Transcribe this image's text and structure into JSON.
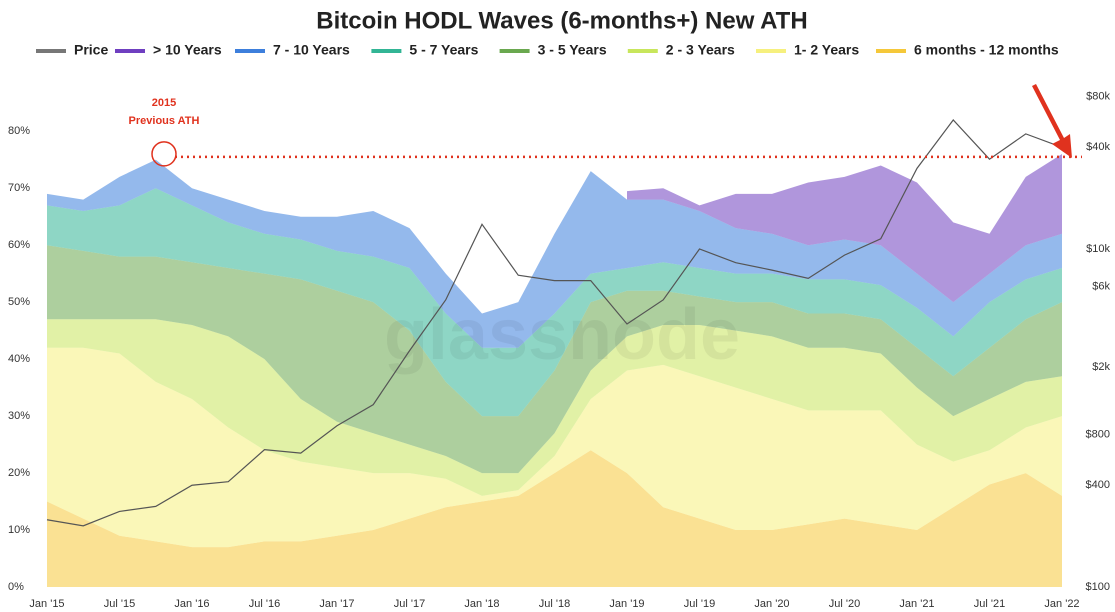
{
  "chart_data": {
    "type": "stacked_area",
    "title": "Bitcoin HODL Waves (6-months+) New ATH",
    "annotation": "2015",
    "annotation_2": "Previous ATH",
    "watermark": "glassnode",
    "ath_line": 75.5,
    "categories": [
      "Jan '15",
      null,
      "Jul '15",
      null,
      "Jan '16",
      null,
      "Jul '16",
      null,
      "Jan '17",
      null,
      "Jul '17",
      null,
      "Jan '18",
      null,
      "Jul '18",
      null,
      "Jan '19",
      null,
      "Jul '19",
      null,
      "Jan '20",
      null,
      "Jul '20",
      null,
      "Jan '21",
      null,
      "Jul '21",
      null,
      "Jan '22"
    ],
    "series": [
      {
        "name": "Price",
        "type": "line",
        "axis": "y2",
        "color": "#777777",
        "values": [
          250,
          230,
          280,
          300,
          400,
          420,
          650,
          620,
          900,
          1200,
          2500,
          5000,
          14000,
          7000,
          6500,
          6500,
          3600,
          5000,
          10000,
          8300,
          7500,
          6700,
          9200,
          11500,
          30000,
          58000,
          34000,
          48000,
          40000
        ]
      },
      {
        "name": "> 10 Years",
        "color": "#6f3fc0",
        "values": [
          null,
          null,
          null,
          null,
          null,
          null,
          null,
          null,
          null,
          null,
          null,
          null,
          null,
          null,
          null,
          null,
          1.5,
          2,
          1,
          6,
          7,
          11,
          11,
          14,
          16,
          14,
          7,
          12,
          14
        ]
      },
      {
        "name": "7 - 10 Years",
        "color": "#3d7fdc",
        "values": [
          2,
          2,
          5,
          5,
          3,
          4,
          4,
          4,
          6,
          8,
          7,
          7,
          6,
          8,
          14,
          18,
          12,
          11,
          10,
          8,
          7,
          6,
          7,
          7,
          6,
          6,
          5,
          6,
          6
        ]
      },
      {
        "name": "5 - 7 Years",
        "color": "#32b595",
        "values": [
          7,
          7,
          9,
          12,
          10,
          8,
          7,
          7,
          7,
          8,
          11,
          12,
          12,
          12,
          10,
          5,
          4,
          5,
          5,
          5,
          5,
          6,
          6,
          6,
          7,
          7,
          8,
          7,
          6
        ]
      },
      {
        "name": "3 - 5 Years",
        "color": "#6aa84f",
        "values": [
          13,
          12,
          11,
          11,
          11,
          12,
          15,
          21,
          23,
          23,
          20,
          13,
          10,
          10,
          11,
          12,
          8,
          6,
          5,
          5,
          6,
          6,
          6,
          6,
          7,
          7,
          9,
          11,
          13
        ]
      },
      {
        "name": "2 - 3 Years",
        "color": "#c8e65c",
        "values": [
          5,
          5,
          6,
          11,
          13,
          16,
          16,
          11,
          8,
          7,
          5,
          4,
          4,
          3,
          4,
          5,
          6,
          7,
          9,
          10,
          11,
          11,
          11,
          10,
          10,
          8,
          9,
          8,
          7
        ]
      },
      {
        "name": "1- 2 Years",
        "color": "#f6f07e",
        "values": [
          27,
          30,
          32,
          28,
          26,
          21,
          16,
          14,
          12,
          10,
          8,
          5,
          1,
          1,
          3,
          9,
          18,
          25,
          25,
          25,
          23,
          20,
          19,
          20,
          15,
          8,
          6,
          8,
          14
        ]
      },
      {
        "name": "6 months - 12 months",
        "color": "#f5c83a",
        "values": [
          15,
          12,
          9,
          8,
          7,
          7,
          8,
          8,
          9,
          10,
          12,
          14,
          15,
          16,
          20,
          24,
          20,
          14,
          12,
          10,
          10,
          11,
          12,
          11,
          10,
          14,
          18,
          20,
          16
        ]
      }
    ],
    "ylim": [
      0,
      89
    ],
    "yticks": [
      {
        "value": 0,
        "label": "0%"
      },
      {
        "value": 10,
        "label": "10%"
      },
      {
        "value": 20,
        "label": "20%"
      },
      {
        "value": 30,
        "label": "30%"
      },
      {
        "value": 40,
        "label": "40%"
      },
      {
        "value": 50,
        "label": "50%"
      },
      {
        "value": 60,
        "label": "60%"
      },
      {
        "value": 70,
        "label": "70%"
      },
      {
        "value": 80,
        "label": "80%"
      }
    ],
    "y2lim": [
      100,
      100000
    ],
    "y2log": true,
    "y2ticks": [
      {
        "value": 100,
        "label": "$100"
      },
      {
        "value": 400,
        "label": "$400"
      },
      {
        "value": 800,
        "label": "$800"
      },
      {
        "value": 2000,
        "label": "$2k"
      },
      {
        "value": 6000,
        "label": "$6k"
      },
      {
        "value": 10000,
        "label": "$10k"
      },
      {
        "value": 40000,
        "label": "$40k"
      },
      {
        "value": 80000,
        "label": "$80k"
      }
    ],
    "area_opacity": 0.55
  }
}
